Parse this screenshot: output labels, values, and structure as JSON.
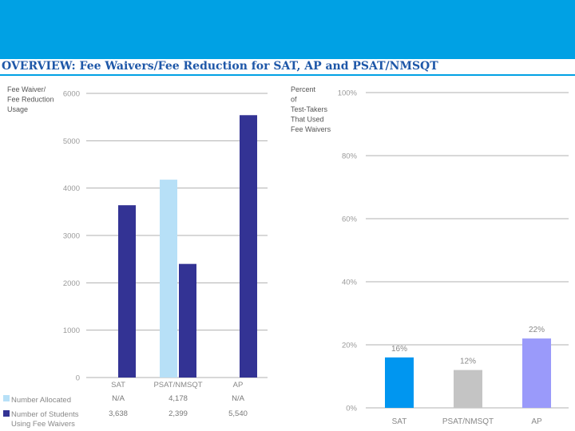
{
  "title": "OVERVIEW: Fee Waivers/Fee Reduction for SAT, AP and PSAT/NMSQT",
  "colors": {
    "banner": "#00a1e4",
    "allocated": "#b7e0f7",
    "used": "#333394",
    "sat": "#0096f0",
    "psat": "#c4c4c4",
    "ap": "#9a9afa"
  },
  "chart_data": [
    {
      "type": "bar",
      "ylabel_lines": [
        "Fee Waiver/",
        "Fee Reduction",
        "Usage"
      ],
      "ylim": [
        0,
        6000
      ],
      "yticks": [
        "0",
        "1000",
        "2000",
        "3000",
        "4000",
        "5000",
        "6000"
      ],
      "categories": [
        "SAT",
        "PSAT/NMSQT",
        "AP"
      ],
      "series": [
        {
          "name_lines": [
            "Number Allocated"
          ],
          "values": [
            null,
            4178,
            null
          ],
          "table": [
            "N/A",
            "4,178",
            "N/A"
          ]
        },
        {
          "name_lines": [
            "Number of Students",
            "Using Fee Waivers"
          ],
          "values": [
            3638,
            2399,
            5540
          ],
          "table": [
            "3,638",
            "2,399",
            "5,540"
          ]
        }
      ]
    },
    {
      "type": "bar",
      "ylabel_lines": [
        "Percent",
        "of",
        "Test-Takers",
        "That Used",
        "Fee Waivers"
      ],
      "ylim": [
        0,
        100
      ],
      "yticks": [
        "0%",
        "20%",
        "40%",
        "60%",
        "80%",
        "100%"
      ],
      "categories": [
        "SAT",
        "PSAT/NMSQT",
        "AP"
      ],
      "values": [
        16,
        12,
        22
      ],
      "labels": [
        "16%",
        "12%",
        "22%"
      ]
    }
  ]
}
